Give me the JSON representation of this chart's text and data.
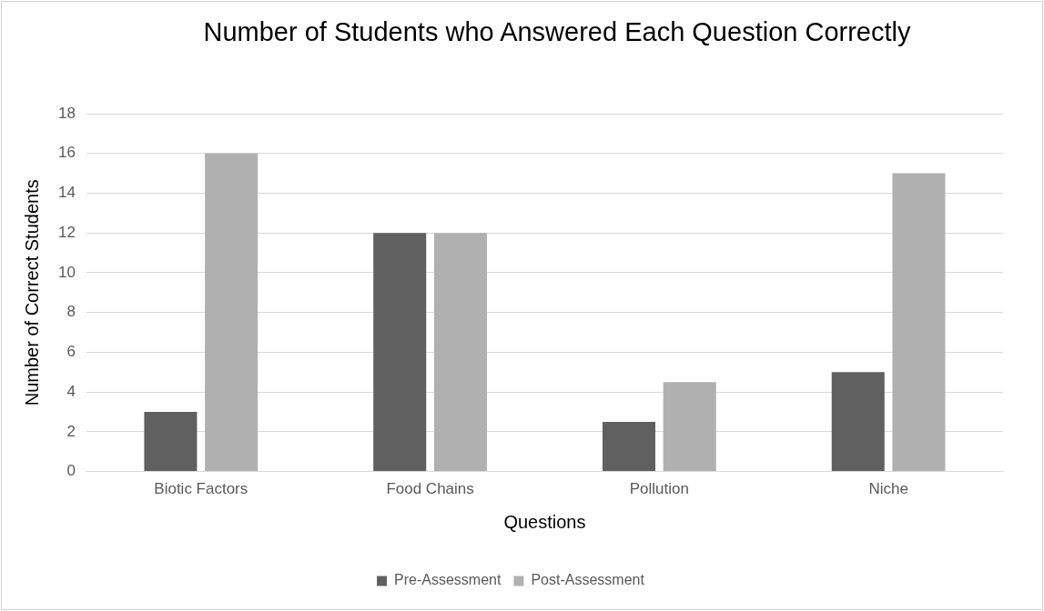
{
  "chart_data": {
    "type": "bar",
    "title": "Number of Students who Answered Each Question Correctly",
    "xlabel": "Questions",
    "ylabel": "Number of Correct Students",
    "categories": [
      "Biotic Factors",
      "Food Chains",
      "Pollution",
      "Niche"
    ],
    "series": [
      {
        "name": "Pre-Assessment",
        "color": "#606060",
        "values": [
          3,
          12,
          2.5,
          5
        ]
      },
      {
        "name": "Post-Assessment",
        "color": "#b0b0b0",
        "values": [
          16,
          12,
          4.5,
          15
        ]
      }
    ],
    "ylim": [
      0,
      18
    ],
    "yticks": [
      0,
      2,
      4,
      6,
      8,
      10,
      12,
      14,
      16,
      18
    ],
    "grid": "y",
    "legend": "bottom"
  }
}
